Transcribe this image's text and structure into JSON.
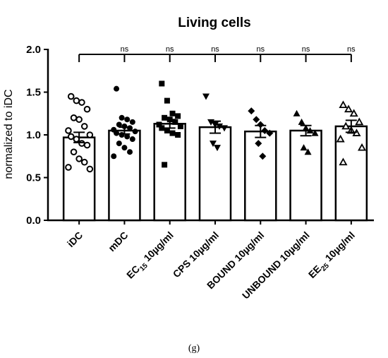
{
  "chart_data": {
    "type": "bar",
    "title": "Living cells",
    "ylabel": "normalized to iDC",
    "xlabel": "",
    "ylim": [
      0,
      2.0
    ],
    "yticks": [
      "0.0",
      "0.5",
      "1.0",
      "1.5",
      "2.0"
    ],
    "categories": [
      {
        "main": "iDC",
        "sub": "",
        "rest": ""
      },
      {
        "main": "mDC",
        "sub": "",
        "rest": ""
      },
      {
        "main": "EC",
        "sub": "15",
        "rest": " 10µg/ml"
      },
      {
        "main": "CPS 10µg/ml",
        "sub": "",
        "rest": ""
      },
      {
        "main": "BOUND 10µg/ml",
        "sub": "",
        "rest": ""
      },
      {
        "main": "UNBOUND 10µg/ml",
        "sub": "",
        "rest": ""
      },
      {
        "main": "EE",
        "sub": "25",
        "rest": " 10µg/ml"
      }
    ],
    "means": [
      0.97,
      1.05,
      1.13,
      1.09,
      1.04,
      1.05,
      1.1
    ],
    "sem": [
      0.06,
      0.04,
      0.05,
      0.07,
      0.07,
      0.06,
      0.07
    ],
    "markers": [
      "circle-open",
      "circle",
      "square",
      "triangle-down",
      "diamond",
      "triangle-up",
      "triangle-open"
    ],
    "points": [
      [
        1.45,
        1.4,
        1.38,
        1.3,
        1.2,
        1.18,
        1.1,
        1.05,
        1.0,
        0.98,
        0.95,
        0.9,
        0.88,
        0.8,
        0.72,
        0.68,
        0.62,
        0.6
      ],
      [
        1.54,
        1.2,
        1.18,
        1.15,
        1.12,
        1.1,
        1.08,
        1.06,
        1.04,
        1.02,
        1.0,
        0.98,
        0.95,
        0.9,
        0.85,
        0.8,
        0.75
      ],
      [
        1.6,
        1.4,
        1.25,
        1.22,
        1.2,
        1.18,
        1.15,
        1.12,
        1.1,
        1.08,
        1.05,
        1.02,
        1.0,
        0.65
      ],
      [
        1.45,
        1.15,
        1.12,
        1.1,
        1.08,
        0.9,
        0.85
      ],
      [
        1.28,
        1.18,
        1.12,
        1.05,
        1.02,
        0.9,
        0.75
      ],
      [
        1.25,
        1.15,
        1.08,
        1.05,
        1.02,
        0.85,
        0.8
      ],
      [
        1.35,
        1.3,
        1.25,
        1.15,
        1.1,
        1.05,
        1.02,
        0.95,
        0.85,
        0.68
      ]
    ],
    "comparison": {
      "reference": "iDC",
      "labels": [
        "ns",
        "ns",
        "ns",
        "ns",
        "ns",
        "ns"
      ]
    },
    "caption": "(g)"
  }
}
